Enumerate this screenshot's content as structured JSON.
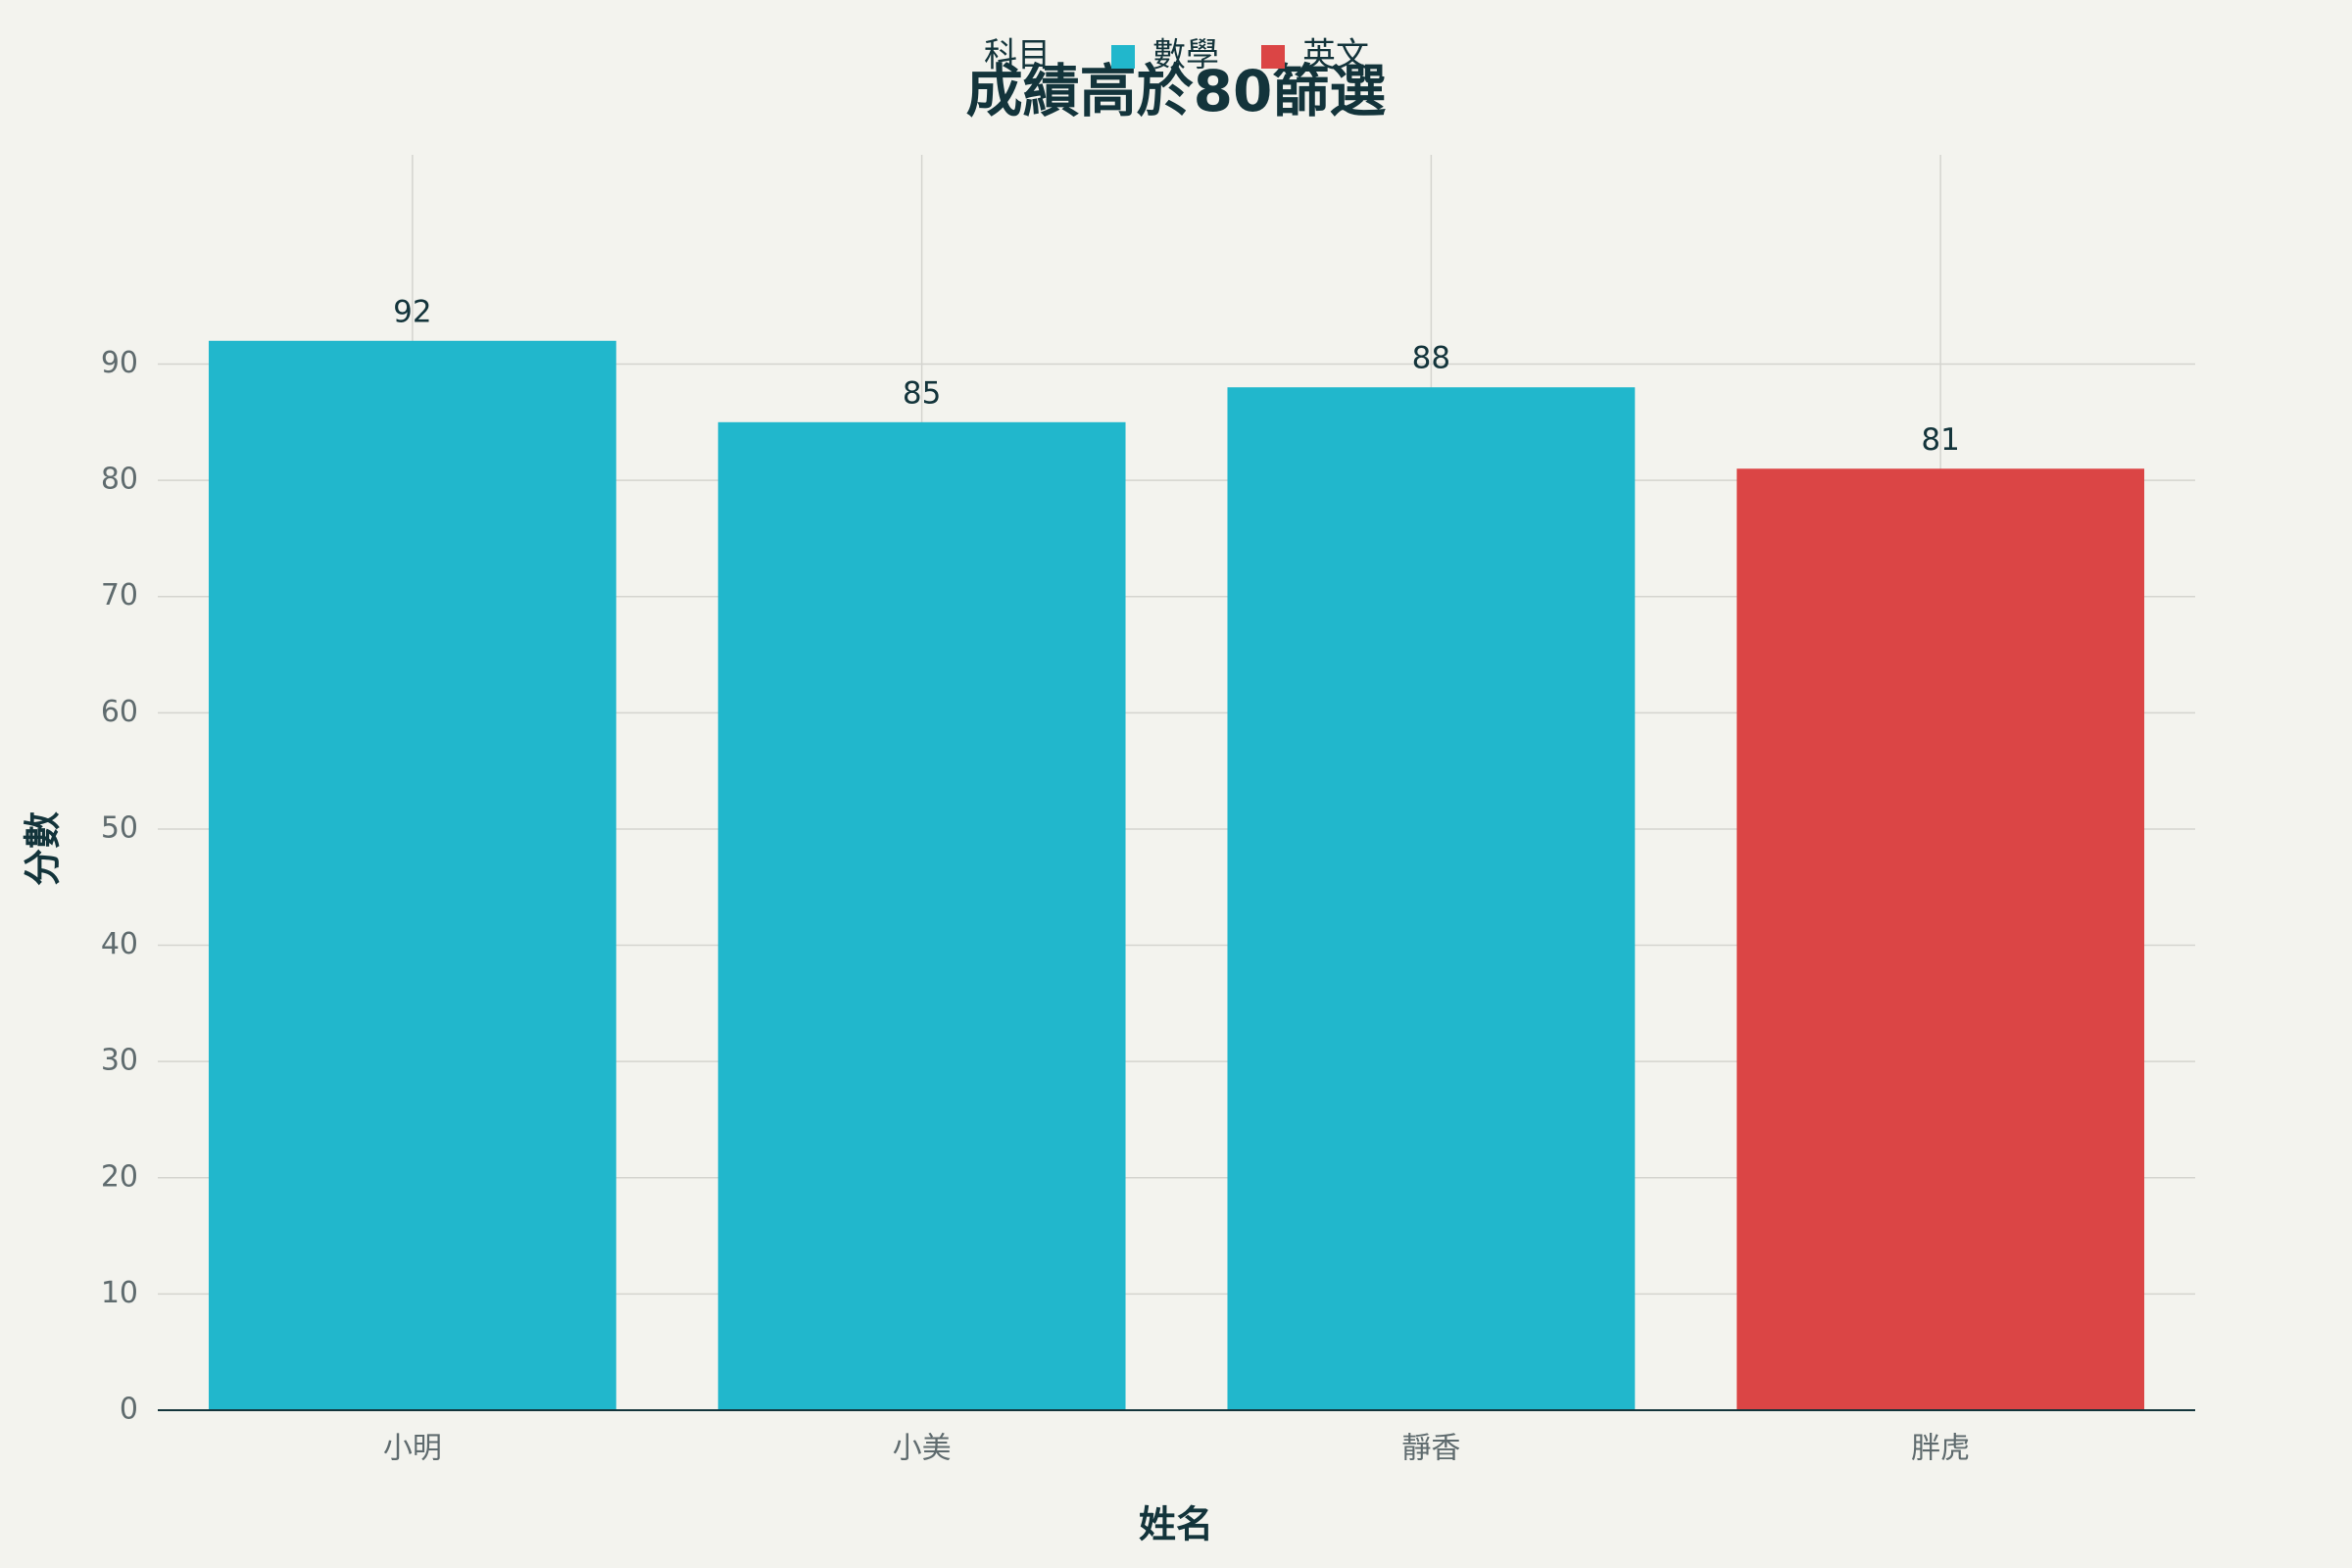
{
  "chart_data": {
    "type": "bar",
    "title": "成績高於80篩選",
    "x_label": "姓名",
    "y_label": "分數",
    "legend_title": "科目",
    "categories": [
      "小明",
      "小美",
      "靜香",
      "胖虎"
    ],
    "series": [
      {
        "name": "數學",
        "color": "#21b7cc",
        "values": [
          92,
          85,
          88,
          null
        ]
      },
      {
        "name": "英文",
        "color": "#db4545",
        "values": [
          null,
          null,
          null,
          81
        ]
      }
    ],
    "ylim": [
      0,
      108
    ],
    "yticks": [
      0,
      10,
      20,
      30,
      40,
      50,
      60,
      70,
      80,
      90
    ],
    "grid": true
  }
}
